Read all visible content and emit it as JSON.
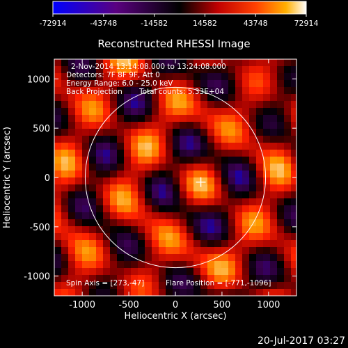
{
  "colorbar": {
    "ticks": [
      "-72914",
      "-43748",
      "-14582",
      "14582",
      "43748",
      "72914"
    ],
    "min": -72914,
    "max": 72914
  },
  "info": {
    "line1": "2-Nov-2014 13:14:08.000 to 13:24:08.000",
    "line2": "Detectors: 7F 8F 9F, Att 0",
    "line3": "Energy Range: 6.0 - 25.0 keV",
    "line4": "Back Projection",
    "line5": "Total counts: 5.33E+04",
    "footer_left": "Spin Axis = [273,-47]",
    "footer_right": "Flare Position = [-771,-1096]"
  },
  "timestamp": "20-Jul-2017 03:27",
  "chart_data": {
    "type": "heatmap",
    "title": "Reconstructed RHESSI Image",
    "xlabel": "Heliocentric X (arcsec)",
    "ylabel": "Heliocentric Y (arcsec)",
    "xlim": [
      -1300,
      1300
    ],
    "ylim": [
      -1200,
      1200
    ],
    "xticks": [
      "-1000",
      "-500",
      "0",
      "500",
      "1000"
    ],
    "yticks": [
      "1000",
      "500",
      "0",
      "-500",
      "-1000"
    ],
    "xtick_values": [
      -1000,
      -500,
      0,
      500,
      1000
    ],
    "ytick_values": [
      1000,
      500,
      0,
      -500,
      -1000
    ],
    "solar_disk_radius_arcsec": 968,
    "spin_axis": [
      273,
      -47
    ],
    "colormap": [
      "#0000ff",
      "#3a0050",
      "#000000",
      "#a00000",
      "#ff2000",
      "#ff9a00",
      "#ffffff"
    ]
  }
}
